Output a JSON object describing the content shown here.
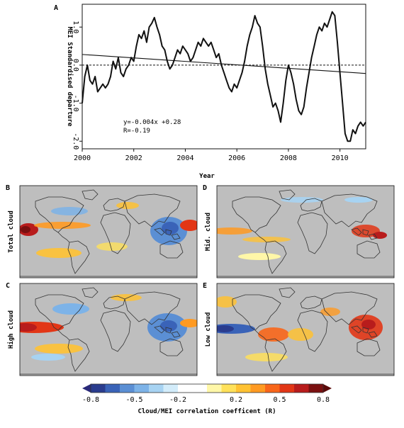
{
  "chart_data": [
    {
      "type": "line",
      "panel_letter": "A",
      "xlabel": "Year",
      "ylabel": "MEI Standardised departure",
      "xlim": [
        2000,
        2011
      ],
      "ylim": [
        -2.2,
        1.6
      ],
      "x_ticks": [
        2000,
        2002,
        2004,
        2006,
        2008,
        2010
      ],
      "x_tick_labels": [
        "2000",
        "2002",
        "2004",
        "2006",
        "2008",
        "2010"
      ],
      "y_ticks": [
        -2.0,
        -1.0,
        0.0,
        1.0
      ],
      "y_tick_labels": [
        "-2.0",
        "-1.0",
        "0.0",
        "1.0"
      ],
      "zero_line": 0.0,
      "x": [
        2000.0,
        2000.1,
        2000.2,
        2000.3,
        2000.4,
        2000.5,
        2000.6,
        2000.7,
        2000.8,
        2000.9,
        2001.0,
        2001.1,
        2001.2,
        2001.3,
        2001.4,
        2001.5,
        2001.6,
        2001.7,
        2001.8,
        2001.9,
        2002.0,
        2002.1,
        2002.2,
        2002.3,
        2002.4,
        2002.5,
        2002.6,
        2002.7,
        2002.8,
        2002.9,
        2003.0,
        2003.1,
        2003.2,
        2003.3,
        2003.4,
        2003.5,
        2003.6,
        2003.7,
        2003.8,
        2003.9,
        2004.0,
        2004.1,
        2004.2,
        2004.3,
        2004.4,
        2004.5,
        2004.6,
        2004.7,
        2004.8,
        2004.9,
        2005.0,
        2005.1,
        2005.2,
        2005.3,
        2005.4,
        2005.5,
        2005.6,
        2005.7,
        2005.8,
        2005.9,
        2006.0,
        2006.1,
        2006.2,
        2006.3,
        2006.4,
        2006.5,
        2006.6,
        2006.7,
        2006.8,
        2006.9,
        2007.0,
        2007.1,
        2007.2,
        2007.3,
        2007.4,
        2007.5,
        2007.6,
        2007.7,
        2007.8,
        2007.9,
        2008.0,
        2008.1,
        2008.2,
        2008.3,
        2008.4,
        2008.5,
        2008.6,
        2008.7,
        2008.8,
        2008.9,
        2009.0,
        2009.1,
        2009.2,
        2009.3,
        2009.4,
        2009.5,
        2009.6,
        2009.7,
        2009.8,
        2009.9,
        2010.0,
        2010.1,
        2010.2,
        2010.3,
        2010.4,
        2010.5,
        2010.6,
        2010.7,
        2010.8,
        2010.9,
        2011.0
      ],
      "y": [
        -1.0,
        -0.3,
        0.0,
        -0.4,
        -0.5,
        -0.3,
        -0.7,
        -0.6,
        -0.5,
        -0.6,
        -0.5,
        -0.3,
        0.1,
        -0.1,
        0.2,
        -0.2,
        -0.3,
        -0.1,
        0.0,
        0.2,
        0.1,
        0.5,
        0.8,
        0.7,
        0.9,
        0.6,
        1.0,
        1.1,
        1.25,
        1.0,
        0.8,
        0.5,
        0.4,
        0.1,
        -0.1,
        0.0,
        0.2,
        0.4,
        0.3,
        0.5,
        0.4,
        0.3,
        0.1,
        0.2,
        0.4,
        0.6,
        0.5,
        0.7,
        0.6,
        0.5,
        0.6,
        0.4,
        0.2,
        0.3,
        0.0,
        -0.2,
        -0.4,
        -0.6,
        -0.7,
        -0.5,
        -0.6,
        -0.4,
        -0.2,
        0.1,
        0.5,
        0.8,
        1.0,
        1.3,
        1.1,
        1.0,
        0.5,
        -0.1,
        -0.5,
        -0.8,
        -1.1,
        -1.0,
        -1.2,
        -1.5,
        -1.0,
        -0.4,
        0.0,
        -0.2,
        -0.5,
        -0.9,
        -1.2,
        -1.3,
        -1.1,
        -0.6,
        -0.2,
        0.2,
        0.5,
        0.8,
        1.0,
        0.9,
        1.1,
        1.0,
        1.2,
        1.4,
        1.3,
        0.6,
        -0.2,
        -1.0,
        -1.8,
        -2.0,
        -2.0,
        -1.7,
        -1.8,
        -1.6,
        -1.5,
        -1.6,
        -1.5
      ],
      "trend": {
        "x": [
          2000.0,
          2011.0
        ],
        "y": [
          0.28,
          -0.22
        ]
      },
      "annotation": [
        "y=-0.004x +0.28",
        "R=-0.19"
      ]
    },
    {
      "type": "heatmap",
      "maps": [
        {
          "letter": "B",
          "label": "Total cloud"
        },
        {
          "letter": "D",
          "label": "Mid. cloud"
        },
        {
          "letter": "C",
          "label": "High cloud"
        },
        {
          "letter": "E",
          "label": "Low cloud"
        }
      ],
      "colorbar": {
        "label": "Cloud/MEI correlation coefficent (R)",
        "range": [
          -0.8,
          0.8
        ],
        "tick_values": [
          -0.8,
          -0.5,
          -0.2,
          0.2,
          0.5,
          0.8
        ],
        "tick_labels": [
          "-0.8",
          "-0.5",
          "-0.2",
          "0.2",
          "0.5",
          "0.8"
        ],
        "colors": [
          "#2a3c8e",
          "#3a63b8",
          "#5b8fd4",
          "#7db3e8",
          "#a7d3f2",
          "#d3ecfa",
          "#ffffff",
          "#ffffff",
          "#fff7a8",
          "#ffe15a",
          "#ffc233",
          "#ff9a22",
          "#f8661a",
          "#e23616",
          "#b81c1c",
          "#7a1010"
        ],
        "neutral_color": "#bebebe"
      }
    }
  ]
}
